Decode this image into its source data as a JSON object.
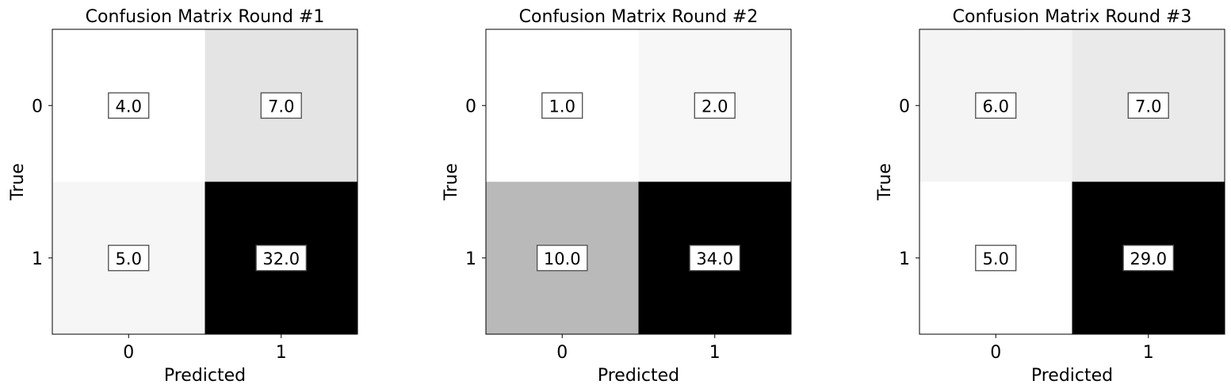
{
  "chart_data": [
    {
      "type": "heatmap",
      "title": "Confusion Matrix Round #1",
      "xlabel": "Predicted",
      "ylabel": "True",
      "x_categories": [
        "0",
        "1"
      ],
      "y_categories": [
        "0",
        "1"
      ],
      "values": [
        [
          4.0,
          7.0
        ],
        [
          5.0,
          32.0
        ]
      ],
      "value_labels": [
        [
          "4.0",
          "7.0"
        ],
        [
          "5.0",
          "32.0"
        ]
      ],
      "colormap": "greys",
      "grid": false
    },
    {
      "type": "heatmap",
      "title": "Confusion Matrix Round #2",
      "xlabel": "Predicted",
      "ylabel": "True",
      "x_categories": [
        "0",
        "1"
      ],
      "y_categories": [
        "0",
        "1"
      ],
      "values": [
        [
          1.0,
          2.0
        ],
        [
          10.0,
          34.0
        ]
      ],
      "value_labels": [
        [
          "1.0",
          "2.0"
        ],
        [
          "10.0",
          "34.0"
        ]
      ],
      "colormap": "greys",
      "grid": false
    },
    {
      "type": "heatmap",
      "title": "Confusion Matrix Round #3",
      "xlabel": "Predicted",
      "ylabel": "True",
      "x_categories": [
        "0",
        "1"
      ],
      "y_categories": [
        "0",
        "1"
      ],
      "values": [
        [
          6.0,
          7.0
        ],
        [
          5.0,
          29.0
        ]
      ],
      "value_labels": [
        [
          "6.0",
          "7.0"
        ],
        [
          "5.0",
          "29.0"
        ]
      ],
      "colormap": "greys",
      "grid": false
    }
  ]
}
